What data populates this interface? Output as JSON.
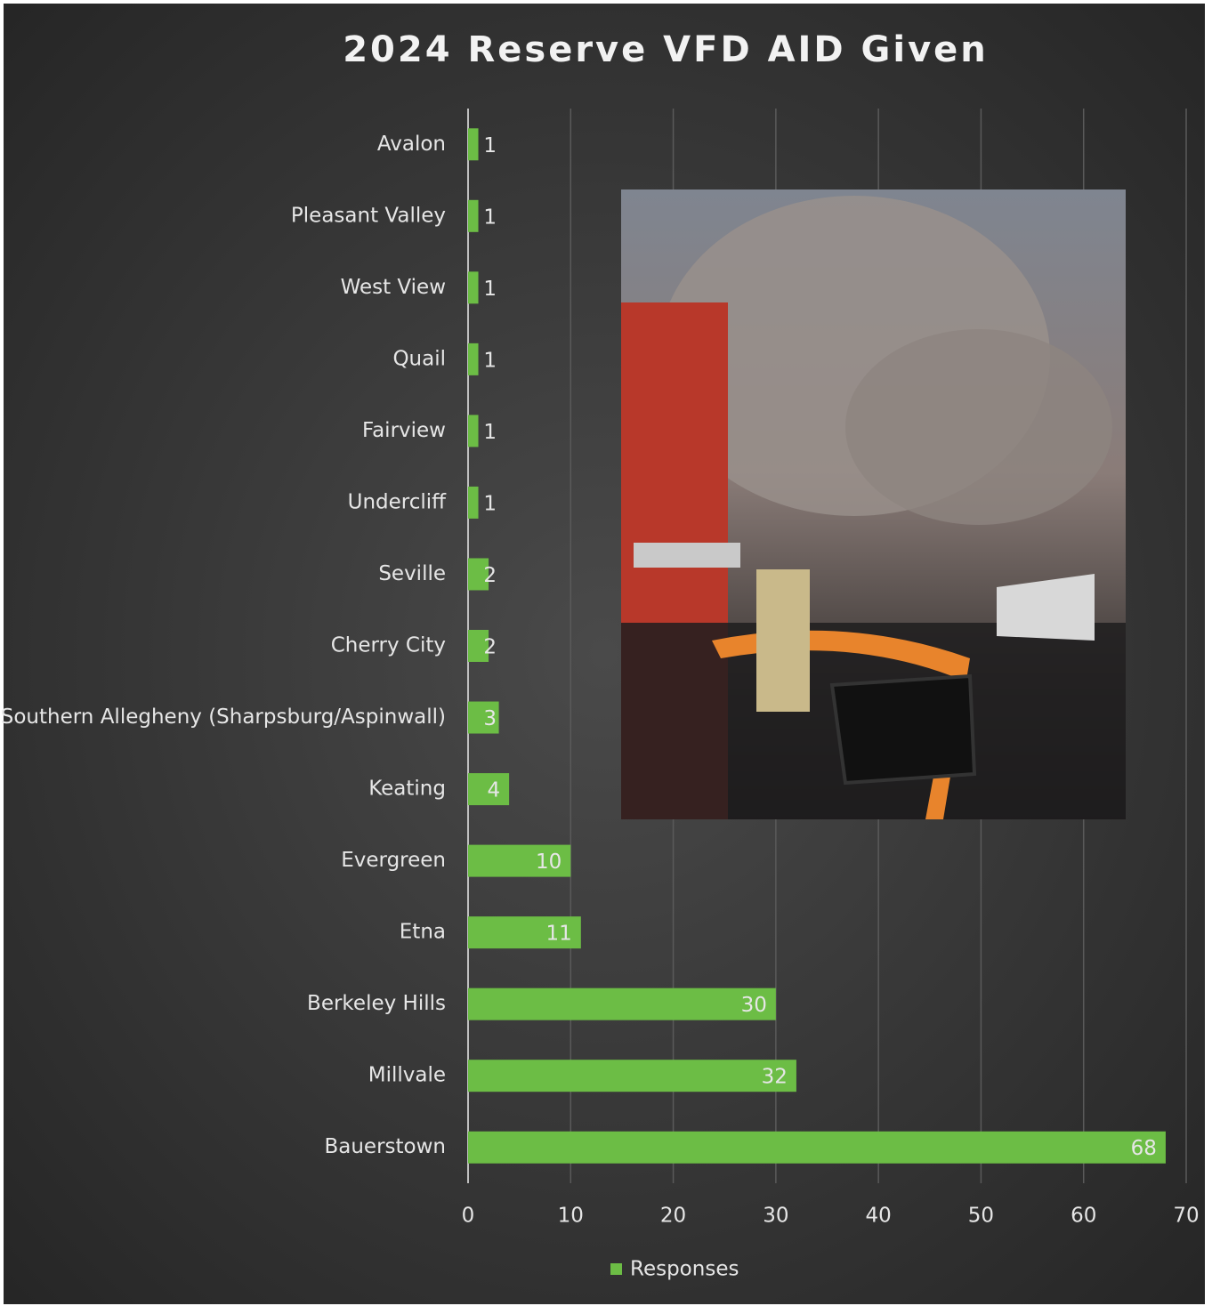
{
  "chart_data": {
    "type": "barh",
    "title": "2024 Reserve VFD AID Given",
    "categories": [
      "Avalon",
      "Pleasant Valley",
      "West View",
      "Quail",
      "Fairview",
      "Undercliff",
      "Seville",
      "Cherry City",
      "Southern Allegheny (Sharpsburg/Aspinwall)",
      "Keating",
      "Evergreen",
      "Etna",
      "Berkeley Hills",
      "Millvale",
      "Bauerstown"
    ],
    "series": [
      {
        "name": "Responses",
        "color": "#6cbd45",
        "values": [
          1,
          1,
          1,
          1,
          1,
          1,
          2,
          2,
          3,
          4,
          10,
          11,
          30,
          32,
          68
        ]
      }
    ],
    "xlim": [
      0,
      70
    ],
    "xticks": [
      0,
      10,
      20,
      30,
      40,
      50,
      60,
      70
    ],
    "grid": true,
    "legend": "bottom"
  }
}
